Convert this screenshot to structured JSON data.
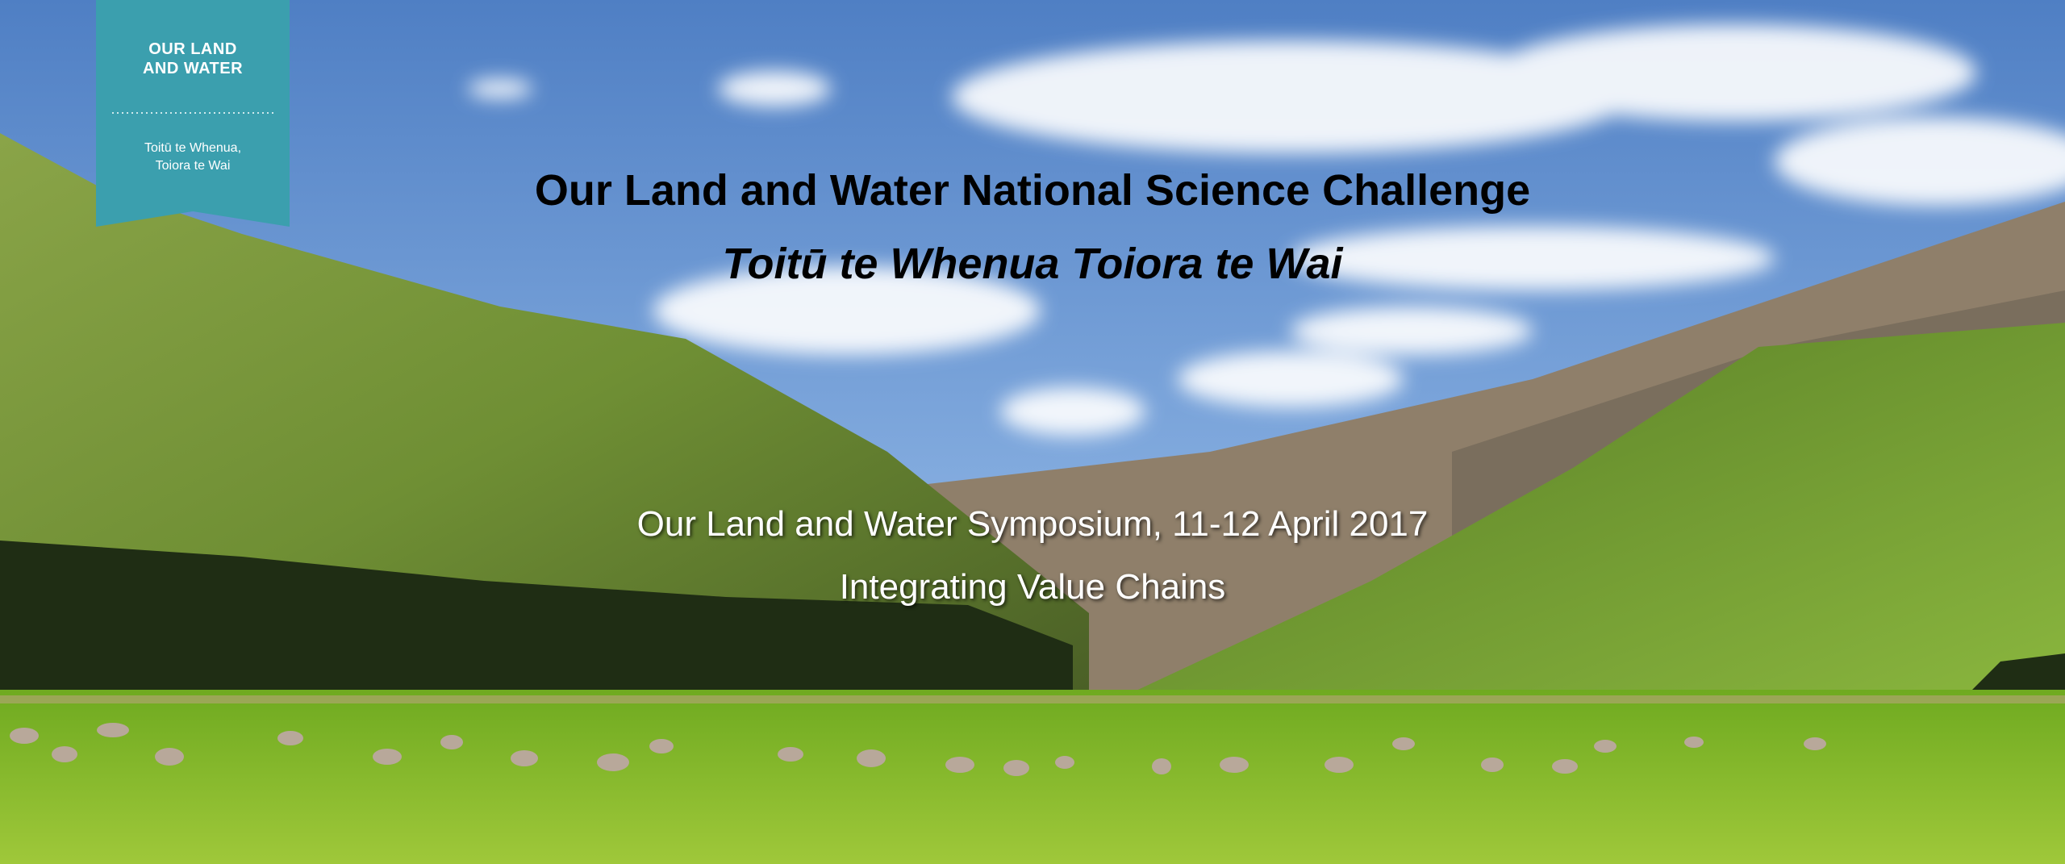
{
  "badge": {
    "title_lines": [
      "OUR LAND",
      "AND WATER"
    ],
    "tagline_lines": [
      "Toitū te Whenua,",
      "Toiora te Wai"
    ]
  },
  "title": "Our Land and Water National Science Challenge",
  "subtitle": "Toitū te Whenua Toiora te Wai",
  "event": "Our Land and Water Symposium, 11-12 April 2017",
  "theme": "Integrating Value Chains"
}
